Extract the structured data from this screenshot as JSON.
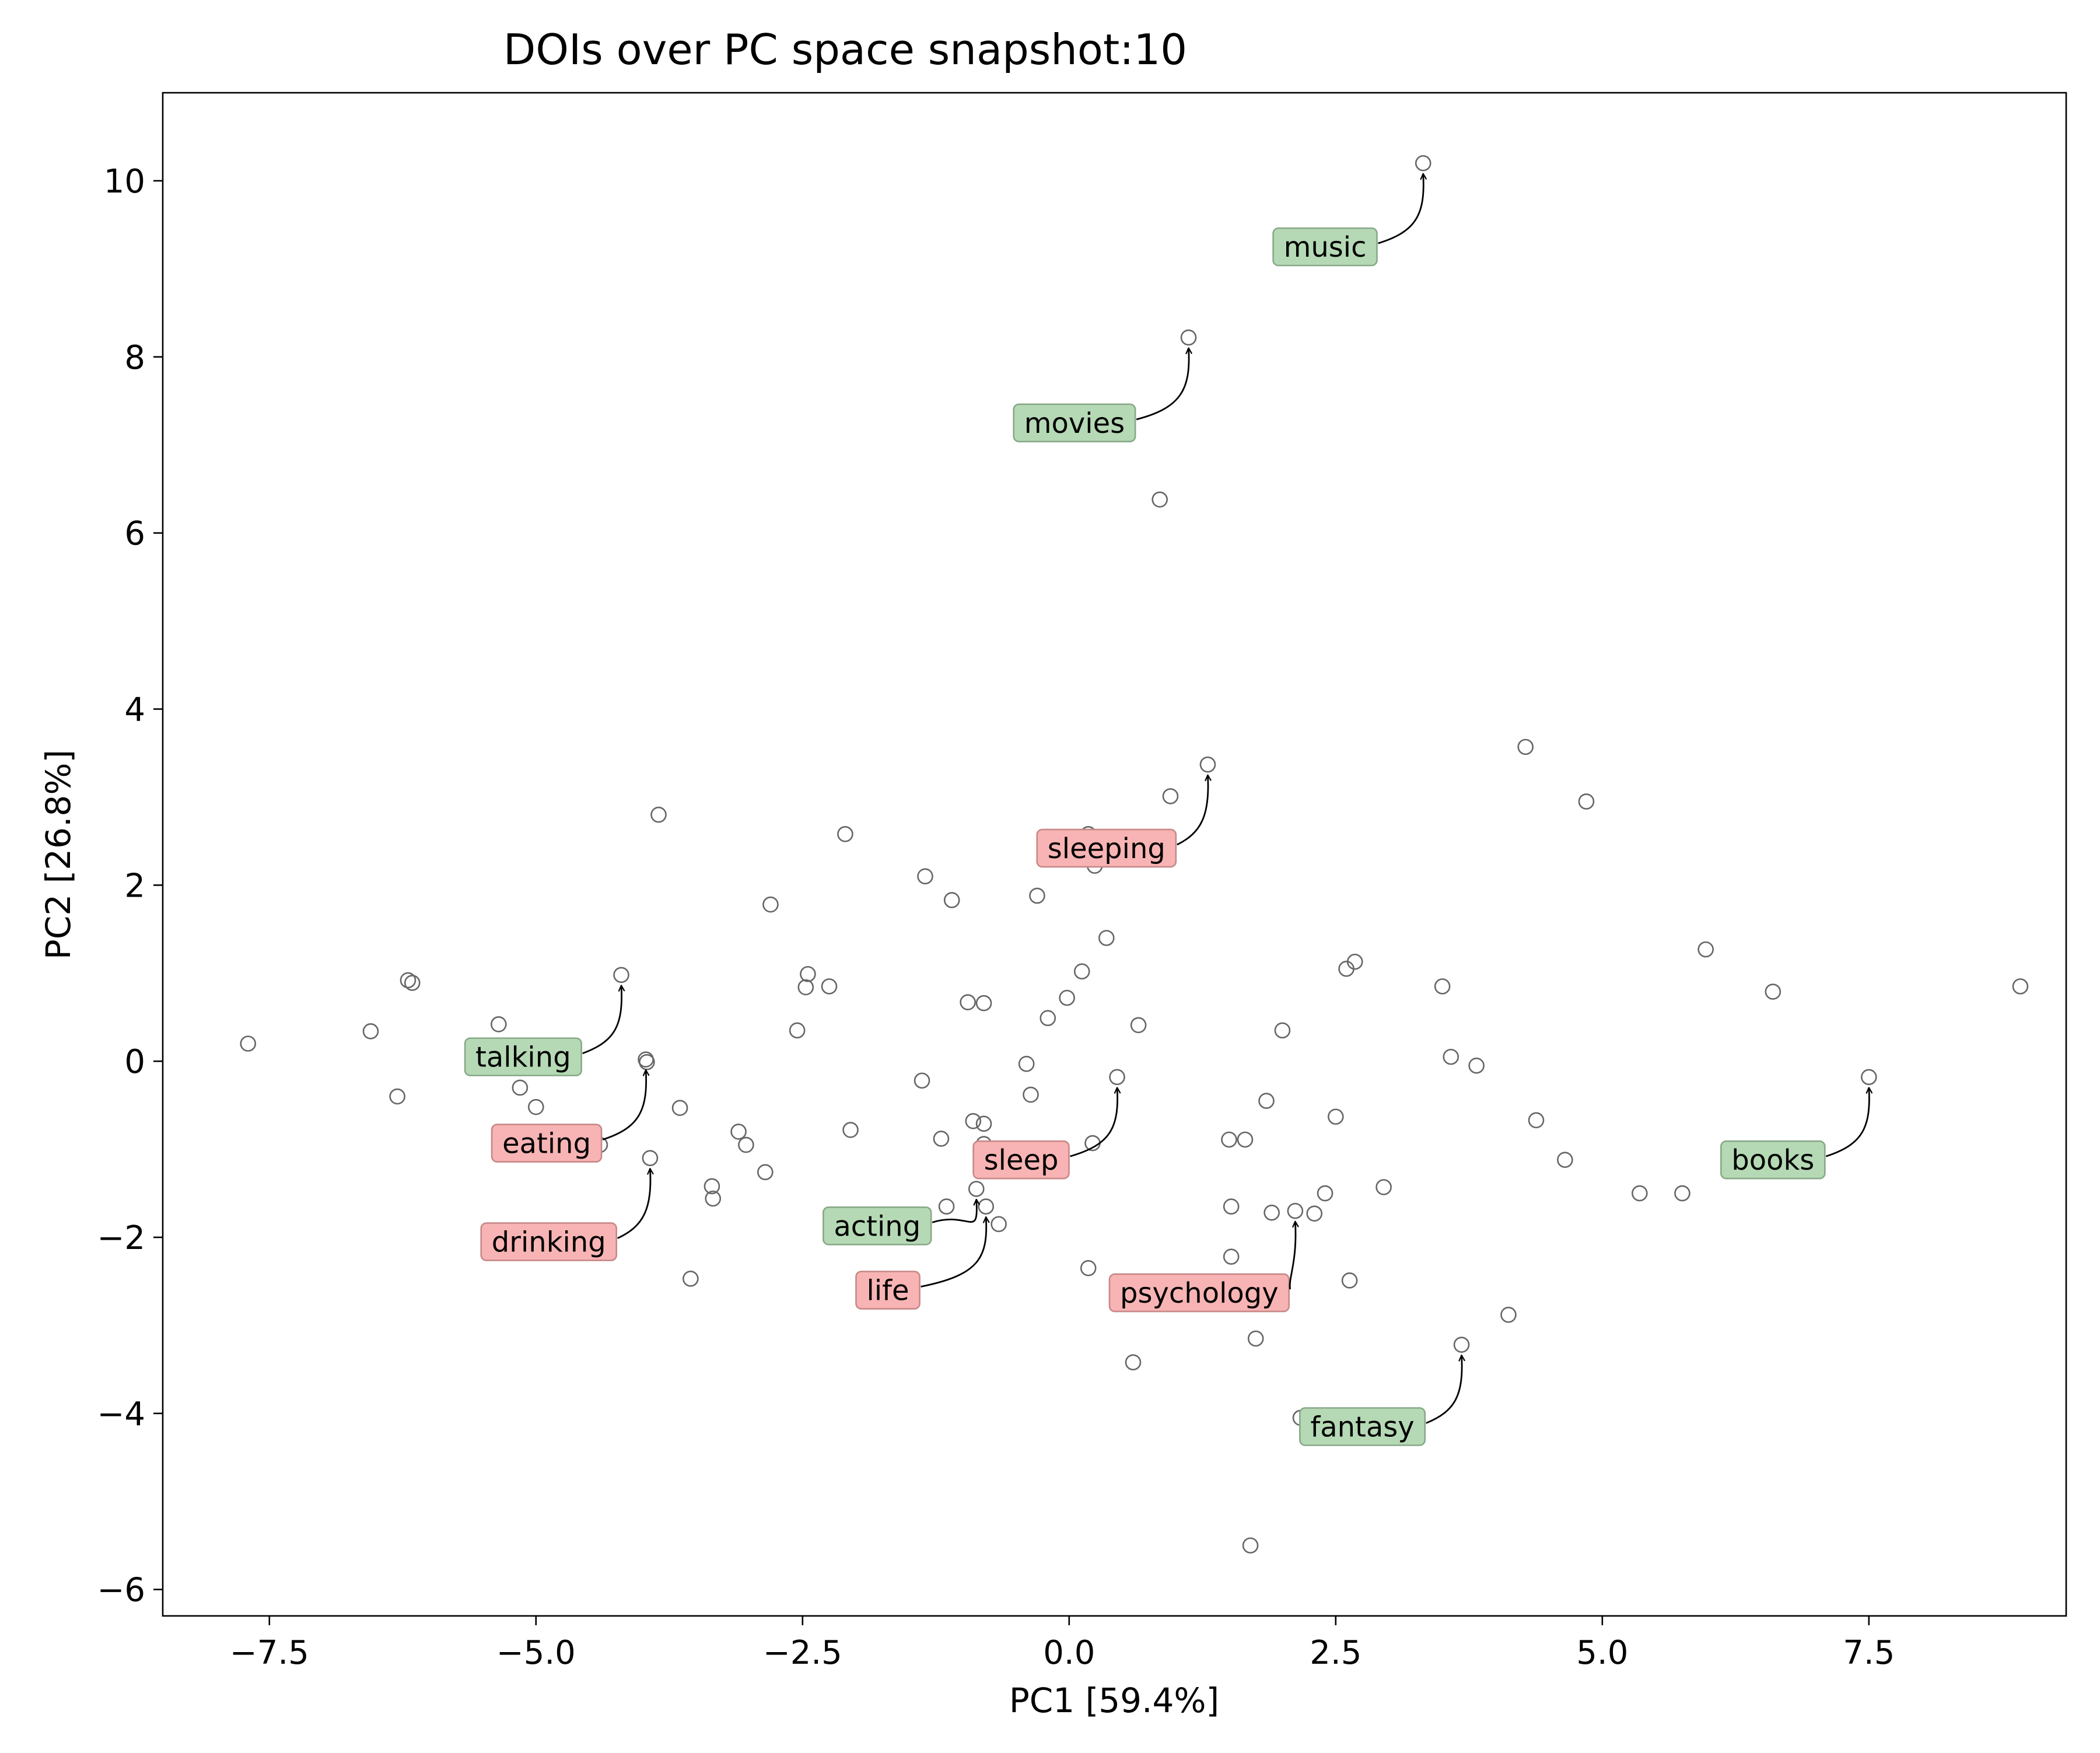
{
  "chart_data": {
    "type": "scatter",
    "title": "DOIs over PC space snapshot:10",
    "xlabel": "PC1 [59.4%]",
    "ylabel": "PC2 [26.8%]",
    "xlim": [
      -8.5,
      9.35
    ],
    "ylim": [
      -6.3,
      11.0
    ],
    "xticks": [
      -7.5,
      -5.0,
      -2.5,
      0.0,
      2.5,
      5.0,
      7.5
    ],
    "xtick_labels": [
      "−7.5",
      "−5.0",
      "−2.5",
      "0.0",
      "2.5",
      "5.0",
      "7.5"
    ],
    "yticks": [
      -6,
      -4,
      -2,
      0,
      2,
      4,
      6,
      8,
      10
    ],
    "ytick_labels": [
      "−6",
      "−4",
      "−2",
      "0",
      "2",
      "4",
      "6",
      "8",
      "10"
    ],
    "grid": false,
    "legend": "none",
    "point_style": {
      "fill": "none",
      "stroke": "#666666"
    },
    "colors": {
      "positive_label": "#b5d9b5",
      "positive_border": "#88a888",
      "negative_label": "#f8b4b4",
      "negative_border": "#c88888"
    },
    "points": [
      {
        "x": 3.32,
        "y": 10.2
      },
      {
        "x": 1.12,
        "y": 8.22
      },
      {
        "x": 0.85,
        "y": 6.38
      },
      {
        "x": 4.28,
        "y": 3.57
      },
      {
        "x": 4.85,
        "y": 2.95
      },
      {
        "x": 1.3,
        "y": 3.37
      },
      {
        "x": 0.95,
        "y": 3.01
      },
      {
        "x": 0.18,
        "y": 2.58
      },
      {
        "x": 0.24,
        "y": 2.22
      },
      {
        "x": -3.85,
        "y": 2.8
      },
      {
        "x": -2.1,
        "y": 2.58
      },
      {
        "x": -1.35,
        "y": 2.1
      },
      {
        "x": -1.1,
        "y": 1.83
      },
      {
        "x": -0.3,
        "y": 1.88
      },
      {
        "x": -2.8,
        "y": 1.78
      },
      {
        "x": 0.35,
        "y": 1.4
      },
      {
        "x": 5.97,
        "y": 1.27
      },
      {
        "x": 2.68,
        "y": 1.13
      },
      {
        "x": 2.6,
        "y": 1.05
      },
      {
        "x": 0.12,
        "y": 1.02
      },
      {
        "x": -2.45,
        "y": 0.99
      },
      {
        "x": -4.2,
        "y": 0.98
      },
      {
        "x": -6.2,
        "y": 0.92
      },
      {
        "x": -6.16,
        "y": 0.89
      },
      {
        "x": -2.25,
        "y": 0.85
      },
      {
        "x": -2.47,
        "y": 0.84
      },
      {
        "x": 3.5,
        "y": 0.85
      },
      {
        "x": 8.92,
        "y": 0.85
      },
      {
        "x": 6.6,
        "y": 0.79
      },
      {
        "x": -0.02,
        "y": 0.72
      },
      {
        "x": -0.95,
        "y": 0.67
      },
      {
        "x": -0.8,
        "y": 0.66
      },
      {
        "x": -0.2,
        "y": 0.49
      },
      {
        "x": -5.35,
        "y": 0.42
      },
      {
        "x": 0.65,
        "y": 0.41
      },
      {
        "x": 2.0,
        "y": 0.35
      },
      {
        "x": -6.55,
        "y": 0.34
      },
      {
        "x": -2.55,
        "y": 0.35
      },
      {
        "x": -7.7,
        "y": 0.2
      },
      {
        "x": 3.58,
        "y": 0.05
      },
      {
        "x": -3.97,
        "y": 0.02
      },
      {
        "x": -3.96,
        "y": -0.01
      },
      {
        "x": 3.82,
        "y": -0.05
      },
      {
        "x": -0.4,
        "y": -0.03
      },
      {
        "x": 0.45,
        "y": -0.18
      },
      {
        "x": 7.5,
        "y": -0.18
      },
      {
        "x": -1.38,
        "y": -0.22
      },
      {
        "x": -5.15,
        "y": -0.3
      },
      {
        "x": -0.36,
        "y": -0.38
      },
      {
        "x": -6.3,
        "y": -0.4
      },
      {
        "x": 1.85,
        "y": -0.45
      },
      {
        "x": -5.0,
        "y": -0.52
      },
      {
        "x": -3.65,
        "y": -0.53
      },
      {
        "x": 2.5,
        "y": -0.63
      },
      {
        "x": 4.38,
        "y": -0.67
      },
      {
        "x": -0.9,
        "y": -0.68
      },
      {
        "x": -0.8,
        "y": -0.71
      },
      {
        "x": -2.05,
        "y": -0.78
      },
      {
        "x": -3.1,
        "y": -0.8
      },
      {
        "x": -1.2,
        "y": -0.88
      },
      {
        "x": 1.5,
        "y": -0.89
      },
      {
        "x": 1.65,
        "y": -0.89
      },
      {
        "x": 0.22,
        "y": -0.93
      },
      {
        "x": -0.8,
        "y": -0.94
      },
      {
        "x": -3.03,
        "y": -0.95
      },
      {
        "x": -4.4,
        "y": -0.95
      },
      {
        "x": -3.93,
        "y": -1.1
      },
      {
        "x": 4.65,
        "y": -1.12
      },
      {
        "x": -2.85,
        "y": -1.26
      },
      {
        "x": -3.35,
        "y": -1.42
      },
      {
        "x": 2.95,
        "y": -1.43
      },
      {
        "x": -0.87,
        "y": -1.45
      },
      {
        "x": 2.4,
        "y": -1.5
      },
      {
        "x": 5.35,
        "y": -1.5
      },
      {
        "x": 5.75,
        "y": -1.5
      },
      {
        "x": -3.34,
        "y": -1.56
      },
      {
        "x": -1.15,
        "y": -1.65
      },
      {
        "x": 1.52,
        "y": -1.65
      },
      {
        "x": -0.78,
        "y": -1.65
      },
      {
        "x": 2.12,
        "y": -1.7
      },
      {
        "x": 1.9,
        "y": -1.72
      },
      {
        "x": 2.3,
        "y": -1.73
      },
      {
        "x": -0.66,
        "y": -1.85
      },
      {
        "x": 1.52,
        "y": -2.22
      },
      {
        "x": 0.18,
        "y": -2.35
      },
      {
        "x": -3.55,
        "y": -2.47
      },
      {
        "x": 2.63,
        "y": -2.49
      },
      {
        "x": 4.12,
        "y": -2.88
      },
      {
        "x": 1.75,
        "y": -3.15
      },
      {
        "x": 3.68,
        "y": -3.22
      },
      {
        "x": 0.6,
        "y": -3.42
      },
      {
        "x": 2.17,
        "y": -4.05
      },
      {
        "x": 1.7,
        "y": -5.5
      }
    ],
    "annotations": [
      {
        "text": "music",
        "category": "positive",
        "target": [
          3.32,
          10.2
        ],
        "label_at": [
          2.4,
          9.25
        ]
      },
      {
        "text": "movies",
        "category": "positive",
        "target": [
          1.12,
          8.22
        ],
        "label_at": [
          0.05,
          7.25
        ]
      },
      {
        "text": "sleeping",
        "category": "negative",
        "target": [
          1.3,
          3.37
        ],
        "label_at": [
          0.35,
          2.42
        ]
      },
      {
        "text": "talking",
        "category": "positive",
        "target": [
          -4.2,
          0.98
        ],
        "label_at": [
          -5.12,
          0.05
        ]
      },
      {
        "text": "eating",
        "category": "negative",
        "target": [
          -3.97,
          0.02
        ],
        "label_at": [
          -4.9,
          -0.93
        ]
      },
      {
        "text": "sleep",
        "category": "negative",
        "target": [
          0.45,
          -0.18
        ],
        "label_at": [
          -0.45,
          -1.12
        ]
      },
      {
        "text": "books",
        "category": "positive",
        "target": [
          7.5,
          -0.18
        ],
        "label_at": [
          6.6,
          -1.12
        ]
      },
      {
        "text": "drinking",
        "category": "negative",
        "target": [
          -3.93,
          -1.1
        ],
        "label_at": [
          -4.88,
          -2.05
        ]
      },
      {
        "text": "acting",
        "category": "positive",
        "target": [
          -0.87,
          -1.45
        ],
        "label_at": [
          -1.8,
          -1.87
        ]
      },
      {
        "text": "life",
        "category": "negative",
        "target": [
          -0.78,
          -1.65
        ],
        "label_at": [
          -1.7,
          -2.6
        ]
      },
      {
        "text": "psychology",
        "category": "negative",
        "target": [
          2.12,
          -1.7
        ],
        "label_at": [
          1.22,
          -2.63
        ]
      },
      {
        "text": "fantasy",
        "category": "positive",
        "target": [
          3.68,
          -3.22
        ],
        "label_at": [
          2.75,
          -4.15
        ]
      }
    ]
  }
}
